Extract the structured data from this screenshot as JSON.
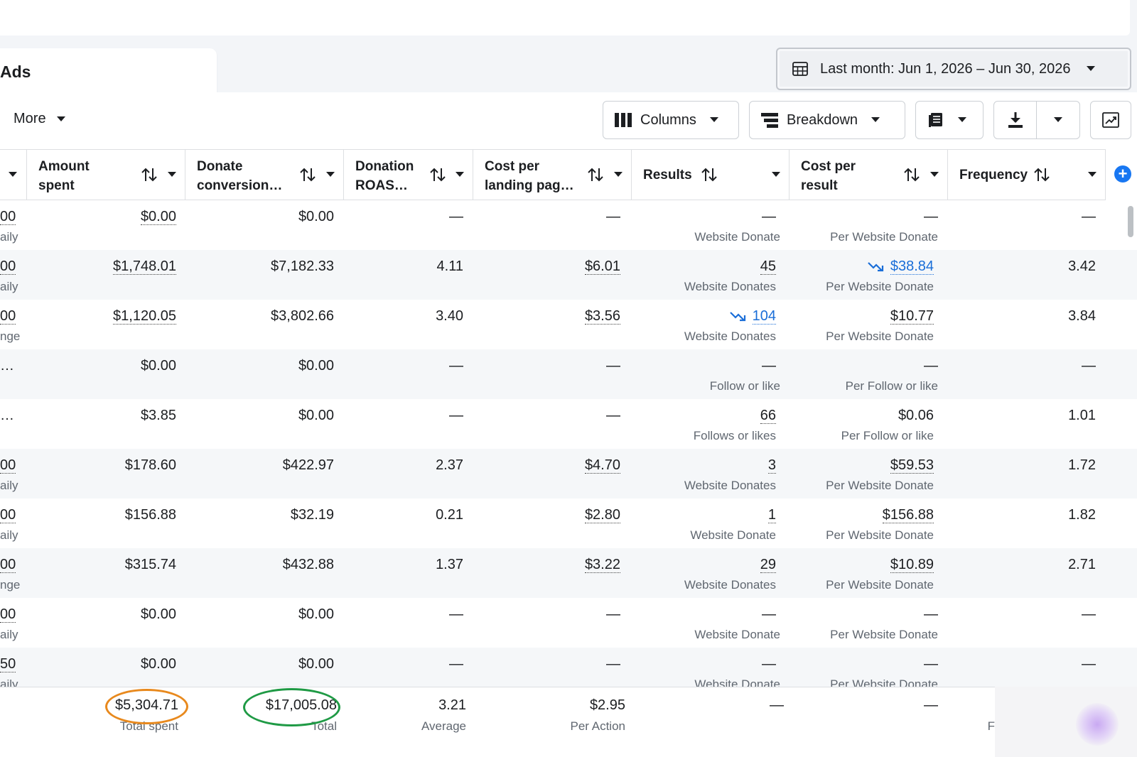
{
  "tabs": {
    "ads_label": "Ads"
  },
  "date_range": {
    "label": "Last month: Jun 1, 2026 – Jun 30, 2026"
  },
  "toolbar": {
    "more_label": "More",
    "columns_label": "Columns",
    "breakdown_label": "Breakdown"
  },
  "columns": {
    "amount_spent": [
      "Amount",
      "spent"
    ],
    "donate_conversion": [
      "Donate",
      "conversion…"
    ],
    "donation_roas": [
      "Donation",
      "ROAS…"
    ],
    "cost_per_landing": [
      "Cost per",
      "landing pag…"
    ],
    "results": "Results",
    "cost_per_result": [
      "Cost per",
      "result"
    ],
    "frequency": "Frequency"
  },
  "rows": [
    {
      "lead": "00",
      "lead_sub": "aily",
      "amount": "$0.00",
      "donate": "$0.00",
      "roas": "—",
      "cpl": "—",
      "results": "—",
      "results_sub": "Website Donate",
      "cpr": "—",
      "cpr_sub": "Per Website Donate",
      "freq": "—"
    },
    {
      "lead": "00",
      "lead_sub": "aily",
      "amount": "$1,748.01",
      "donate": "$7,182.33",
      "roas": "4.11",
      "cpl": "$6.01",
      "results": "45",
      "results_sub": "Website Donates",
      "cpr": "$38.84",
      "cpr_sub": "Per Website Donate",
      "freq": "3.42"
    },
    {
      "lead": "00",
      "lead_sub": "nge",
      "amount": "$1,120.05",
      "donate": "$3,802.66",
      "roas": "3.40",
      "cpl": "$3.56",
      "results": "104",
      "results_sub": "Website Donates",
      "cpr": "$10.77",
      "cpr_sub": "Per Website Donate",
      "freq": "3.84"
    },
    {
      "lead": "…",
      "lead_sub": "",
      "amount": "$0.00",
      "donate": "$0.00",
      "roas": "—",
      "cpl": "—",
      "results": "—",
      "results_sub": "Follow or like",
      "cpr": "—",
      "cpr_sub": "Per Follow or like",
      "freq": "—"
    },
    {
      "lead": "…",
      "lead_sub": "",
      "amount": "$3.85",
      "donate": "$0.00",
      "roas": "—",
      "cpl": "—",
      "results": "66",
      "results_sub": "Follows or likes",
      "cpr": "$0.06",
      "cpr_sub": "Per Follow or like",
      "freq": "1.01"
    },
    {
      "lead": "00",
      "lead_sub": "aily",
      "amount": "$178.60",
      "donate": "$422.97",
      "roas": "2.37",
      "cpl": "$4.70",
      "results": "3",
      "results_sub": "Website Donates",
      "cpr": "$59.53",
      "cpr_sub": "Per Website Donate",
      "freq": "1.72"
    },
    {
      "lead": "00",
      "lead_sub": "aily",
      "amount": "$156.88",
      "donate": "$32.19",
      "roas": "0.21",
      "cpl": "$2.80",
      "results": "1",
      "results_sub": "Website Donate",
      "cpr": "$156.88",
      "cpr_sub": "Per Website Donate",
      "freq": "1.82"
    },
    {
      "lead": "00",
      "lead_sub": "nge",
      "amount": "$315.74",
      "donate": "$432.88",
      "roas": "1.37",
      "cpl": "$3.22",
      "results": "29",
      "results_sub": "Website Donates",
      "cpr": "$10.89",
      "cpr_sub": "Per Website Donate",
      "freq": "2.71"
    },
    {
      "lead": "00",
      "lead_sub": "aily",
      "amount": "$0.00",
      "donate": "$0.00",
      "roas": "—",
      "cpl": "—",
      "results": "—",
      "results_sub": "Website Donate",
      "cpr": "—",
      "cpr_sub": "Per Website Donate",
      "freq": "—"
    },
    {
      "lead": "50",
      "lead_sub": "aily",
      "amount": "$0.00",
      "donate": "$0.00",
      "roas": "—",
      "cpl": "—",
      "results": "—",
      "results_sub": "Website Donate",
      "cpr": "—",
      "cpr_sub": "Per Website Donate",
      "freq": "—"
    }
  ],
  "totals": {
    "amount": "$5,304.71",
    "amount_label": "Total spent",
    "donate": "$17,005.08",
    "donate_label": "Total",
    "roas": "3.21",
    "roas_label": "Average",
    "cpl": "$2.95",
    "cpl_label": "Per Action",
    "results": "—",
    "cpr": "—",
    "freq_label": "F"
  },
  "colors": {
    "accent": "#1877f2",
    "link": "#1a6ed8",
    "highlight_orange": "#e8891d",
    "highlight_green": "#1f9a45"
  }
}
